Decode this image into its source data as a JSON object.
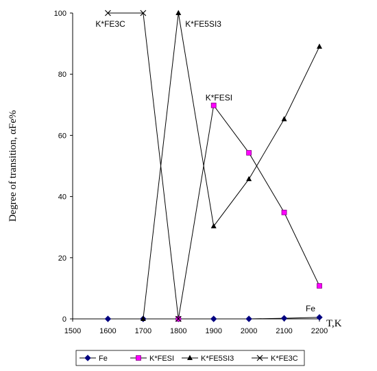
{
  "chart_data": {
    "type": "line",
    "xlabel": "T,K",
    "ylabel": "Degree of transition, αFe%",
    "xlim": [
      1500,
      2200
    ],
    "ylim": [
      0,
      100
    ],
    "x_ticks": [
      1500,
      1600,
      1700,
      1800,
      1900,
      2000,
      2100,
      2200
    ],
    "y_ticks": [
      0,
      20,
      40,
      60,
      80,
      100
    ],
    "grid": false,
    "legend_position": "bottom",
    "series": [
      {
        "name": "Fe",
        "marker": "diamond",
        "color": "#000080",
        "x": [
          1600,
          1700,
          1800,
          1900,
          2000,
          2100,
          2200
        ],
        "values": [
          0,
          0,
          0,
          0,
          0,
          0.2,
          0.5
        ]
      },
      {
        "name": "K*FESI",
        "marker": "square",
        "color": "#ff00ff",
        "x": [
          1800,
          1900,
          2000,
          2100,
          2200
        ],
        "values": [
          0,
          69.8,
          54.3,
          34.8,
          10.8
        ]
      },
      {
        "name": "K*FE5SI3",
        "marker": "triangle",
        "color": "#000000",
        "x": [
          1700,
          1800,
          1900,
          2000,
          2100,
          2200
        ],
        "values": [
          0,
          100,
          30.3,
          45.7,
          65.3,
          89
        ]
      },
      {
        "name": "K*FE3C",
        "marker": "x",
        "color": "#000000",
        "x": [
          1600,
          1700,
          1800
        ],
        "values": [
          100,
          100,
          0
        ]
      }
    ],
    "annotations": [
      {
        "text": "K*FE3C",
        "series": "K*FE3C",
        "x": 1600,
        "y": 100
      },
      {
        "text": "K*FE5SI3",
        "series": "K*FE5SI3",
        "x": 1800,
        "y": 100
      },
      {
        "text": "K*FESI",
        "series": "K*FESI",
        "x": 1900,
        "y": 69.8
      },
      {
        "text": "Fe",
        "series": "Fe",
        "x": 2200,
        "y": 0.5
      }
    ]
  }
}
